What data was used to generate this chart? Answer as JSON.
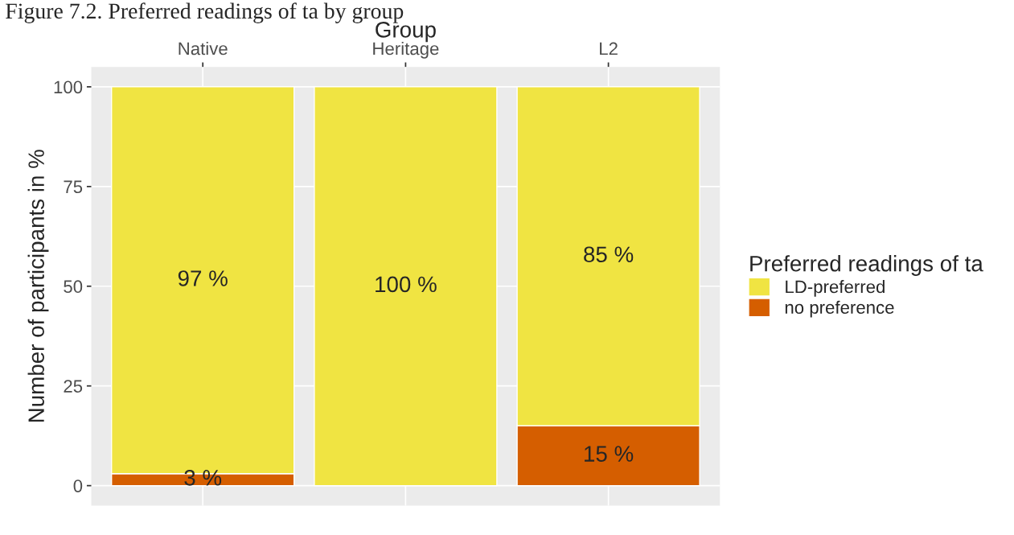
{
  "chart_data": {
    "type": "bar",
    "stacked": true,
    "title": "Figure 7.2. Preferred readings of ta by group",
    "xlabel": "Group",
    "ylabel": "Number of participants in %",
    "legend_title": "Preferred readings of ta",
    "categories": [
      "Native",
      "Heritage",
      "L2"
    ],
    "series": [
      {
        "name": "no preference",
        "color": "#d55e00",
        "values": [
          3,
          0,
          15
        ],
        "value_labels": [
          "3 %",
          null,
          "15 %"
        ]
      },
      {
        "name": "LD-preferred",
        "color": "#f0e442",
        "values": [
          97,
          100,
          85
        ],
        "value_labels": [
          "97 %",
          "100 %",
          "85 %"
        ]
      }
    ],
    "ylim": [
      -5,
      105
    ],
    "yticks": [
      0,
      25,
      50,
      75,
      100
    ],
    "grid": true,
    "legend": "right"
  }
}
